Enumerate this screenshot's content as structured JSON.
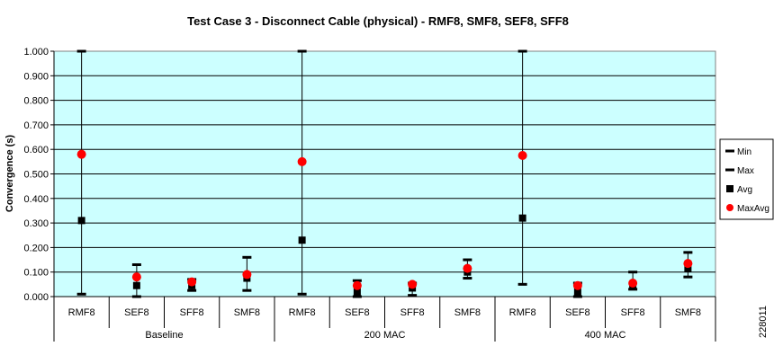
{
  "chart_data": {
    "type": "scatter",
    "title": "Test Case 3 - Disconnect Cable (physical) - RMF8, SMF8, SEF8, SFF8",
    "ylabel": "Convergence (s)",
    "xlabel": "",
    "ylim": [
      0,
      1.0
    ],
    "y_ticks": [
      "0.000",
      "0.100",
      "0.200",
      "0.300",
      "0.400",
      "0.500",
      "0.600",
      "0.700",
      "0.800",
      "0.900",
      "1.000"
    ],
    "background_color": "#ccffff",
    "grid": true,
    "legend_position": "right",
    "groups": [
      {
        "label": "Baseline",
        "categories": [
          "RMF8",
          "SEF8",
          "SFF8",
          "SMF8"
        ]
      },
      {
        "label": "200 MAC",
        "categories": [
          "RMF8",
          "SEF8",
          "SFF8",
          "SMF8"
        ]
      },
      {
        "label": "400 MAC",
        "categories": [
          "RMF8",
          "SEF8",
          "SFF8",
          "SMF8"
        ]
      }
    ],
    "categories": [
      "RMF8",
      "SEF8",
      "SFF8",
      "SMF8",
      "RMF8",
      "SEF8",
      "SFF8",
      "SMF8",
      "RMF8",
      "SEF8",
      "SFF8",
      "SMF8"
    ],
    "series": [
      {
        "name": "Min",
        "marker": "dash",
        "color": "#000000",
        "values": [
          0.01,
          0.0,
          0.025,
          0.025,
          0.01,
          0.0,
          0.005,
          0.075,
          0.05,
          0.0,
          0.03,
          0.08
        ]
      },
      {
        "name": "Max",
        "marker": "dash",
        "color": "#000000",
        "values": [
          1.0,
          0.13,
          0.07,
          0.16,
          1.0,
          0.065,
          0.055,
          0.15,
          1.0,
          0.055,
          0.1,
          0.18
        ]
      },
      {
        "name": "Avg",
        "marker": "square",
        "color": "#000000",
        "values": [
          0.31,
          0.045,
          0.045,
          0.075,
          0.23,
          0.02,
          0.035,
          0.1,
          0.32,
          0.02,
          0.04,
          0.115
        ]
      },
      {
        "name": "MaxAvg",
        "marker": "circle",
        "color": "#ff0000",
        "values": [
          0.58,
          0.08,
          0.06,
          0.09,
          0.55,
          0.045,
          0.05,
          0.115,
          0.575,
          0.045,
          0.055,
          0.135
        ]
      }
    ]
  },
  "figure_id": "228011"
}
